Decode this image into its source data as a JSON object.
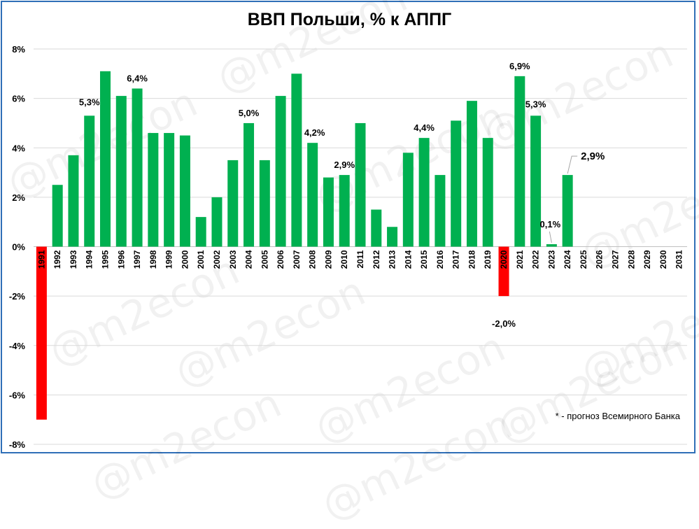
{
  "chart_data": {
    "type": "bar",
    "title": "ВВП Польши, % к АППГ",
    "footnote": "* - прогноз Всемирного Банка",
    "watermark": "@m2econ",
    "ylim": [
      -8,
      8
    ],
    "yticks": [
      "-8%",
      "-6%",
      "-4%",
      "-2%",
      "0%",
      "2%",
      "4%",
      "6%",
      "8%"
    ],
    "grid": true,
    "colors": {
      "positive": "#00b050",
      "negative": "#ff0000",
      "frame": "#2f6fb7"
    },
    "categories": [
      "1991",
      "1992",
      "1993",
      "1994",
      "1995",
      "1996",
      "1997",
      "1998",
      "1999",
      "2000",
      "2001",
      "2002",
      "2003",
      "2004",
      "2005",
      "2006",
      "2007",
      "2008",
      "2009",
      "2010",
      "2011",
      "2012",
      "2013",
      "2014",
      "2015",
      "2016",
      "2017",
      "2018",
      "2019",
      "2020",
      "2021",
      "2022",
      "2023",
      "2024",
      "2025",
      "2026",
      "2027",
      "2028",
      "2029",
      "2030",
      "2031"
    ],
    "values": [
      -7.0,
      2.5,
      3.7,
      5.3,
      7.1,
      6.1,
      6.4,
      4.6,
      4.6,
      4.5,
      1.2,
      2.0,
      3.5,
      5.0,
      3.5,
      6.1,
      7.0,
      4.2,
      2.8,
      2.9,
      5.0,
      1.5,
      0.8,
      3.8,
      4.4,
      2.9,
      5.1,
      5.9,
      4.4,
      -2.0,
      6.9,
      5.3,
      0.1,
      2.9,
      null,
      null,
      null,
      null,
      null,
      null,
      null
    ],
    "data_labels": [
      {
        "category": "1994",
        "text": "5,3%"
      },
      {
        "category": "1997",
        "text": "6,4%"
      },
      {
        "category": "2004",
        "text": "5,0%"
      },
      {
        "category": "2008",
        "text": "4,2%"
      },
      {
        "category": "2010",
        "text": "2,9%"
      },
      {
        "category": "2015",
        "text": "4,4%"
      },
      {
        "category": "2020",
        "text": "-2,0%"
      },
      {
        "category": "2021",
        "text": "6,9%"
      },
      {
        "category": "2022",
        "text": "5,3%"
      },
      {
        "category": "2023",
        "text": "0,1%"
      },
      {
        "category": "2024",
        "text": "2,9%"
      }
    ]
  }
}
